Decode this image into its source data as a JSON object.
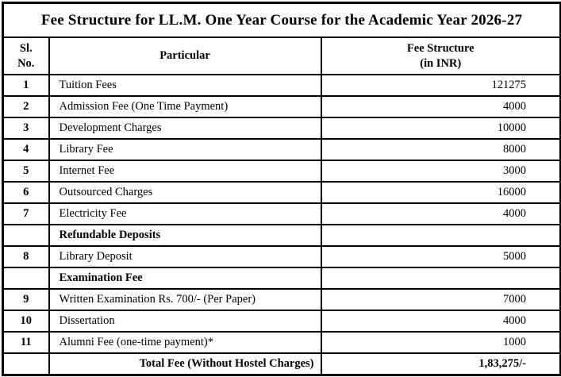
{
  "title": "Fee Structure for LL.M. One Year Course for the Academic Year 2026-27",
  "colors": {
    "border": "#000000",
    "text": "#000000",
    "background": "#ffffff"
  },
  "table": {
    "headers": {
      "sl_no": "Sl.\nNo.",
      "particular": "Particular",
      "fee": "Fee Structure\n(in INR)"
    },
    "rows": [
      {
        "no": "1",
        "particular": "Tuition Fees",
        "fee": "121275",
        "style": "item"
      },
      {
        "no": "2",
        "particular": "Admission Fee (One Time Payment)",
        "fee": "4000",
        "style": "item"
      },
      {
        "no": "3",
        "particular": "Development Charges",
        "fee": "10000",
        "style": "item"
      },
      {
        "no": "4",
        "particular": "Library Fee",
        "fee": "8000",
        "style": "item"
      },
      {
        "no": "5",
        "particular": "Internet Fee",
        "fee": "3000",
        "style": "item"
      },
      {
        "no": "6",
        "particular": "Outsourced Charges",
        "fee": "16000",
        "style": "item"
      },
      {
        "no": "7",
        "particular": "Electricity Fee",
        "fee": "4000",
        "style": "item"
      },
      {
        "no": "",
        "particular": "Refundable Deposits",
        "fee": "",
        "style": "section"
      },
      {
        "no": "8",
        "particular": "Library Deposit",
        "fee": "5000",
        "style": "item"
      },
      {
        "no": "",
        "particular": "Examination Fee",
        "fee": "",
        "style": "section"
      },
      {
        "no": "9",
        "particular": "Written Examination Rs. 700/- (Per Paper)",
        "fee": "7000",
        "style": "item"
      },
      {
        "no": "10",
        "particular": "Dissertation",
        "fee": "4000",
        "style": "item"
      },
      {
        "no": "11",
        "particular": "Alumni Fee (one-time payment)*",
        "fee": "1000",
        "style": "item"
      },
      {
        "no": "",
        "particular": "Total Fee (Without Hostel Charges)",
        "fee": "1,83,275/-",
        "style": "total"
      }
    ]
  }
}
